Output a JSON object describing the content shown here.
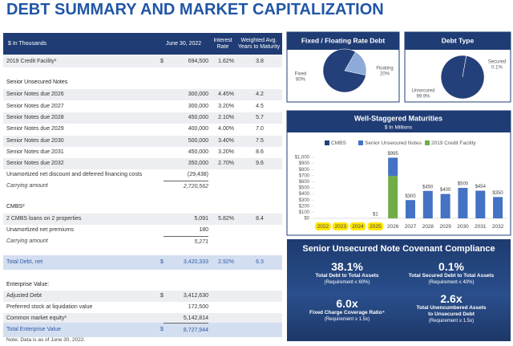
{
  "title": "DEBT SUMMARY AND MARKET CAPITALIZATION",
  "table": {
    "header": [
      "$ In Thousands",
      "June 30, 2022",
      "Interest Rate",
      "Weighted Avg. Years to Maturity"
    ],
    "rows": [
      {
        "label": "2019 Credit Facility¹",
        "currency": "$",
        "amount": "694,500",
        "rate": "1.62%",
        "years": "3.8"
      },
      {
        "label": "Senior Unsecured Notes"
      },
      {
        "label": "Senior Notes due 2026",
        "amount": "300,000",
        "rate": "4.45%",
        "years": "4.2"
      },
      {
        "label": "Senior Notes due 2027",
        "amount": "300,000",
        "rate": "3.20%",
        "years": "4.5"
      },
      {
        "label": "Senior Notes due 2028",
        "amount": "450,000",
        "rate": "2.10%",
        "years": "5.7"
      },
      {
        "label": "Senior Notes due 2029",
        "amount": "400,000",
        "rate": "4.00%",
        "years": "7.0"
      },
      {
        "label": "Senior Notes due 2030",
        "amount": "500,000",
        "rate": "3.40%",
        "years": "7.5"
      },
      {
        "label": "Senior Notes due 2031",
        "amount": "450,000",
        "rate": "3.20%",
        "years": "8.6"
      },
      {
        "label": "Senior Notes due 2032",
        "amount": "350,000",
        "rate": "2.70%",
        "years": "9.6"
      },
      {
        "label": "Unamortized net discount and deferred financing costs",
        "amount": "(29,438)"
      },
      {
        "label": "Carrying amount",
        "amount": "2,720,562"
      },
      {
        "label": "CMBS²"
      },
      {
        "label": "2 CMBS loans on 2 properties",
        "amount": "5,091",
        "rate": "5.82%",
        "years": "8.4"
      },
      {
        "label": "Unamortized net premiums",
        "amount": "180"
      },
      {
        "label": "Carrying amount",
        "amount": "5,271"
      },
      {
        "label": "Total Debt, net",
        "currency": "$",
        "amount": "3,420,333",
        "rate": "2.92%",
        "years": "6.3"
      },
      {
        "label": "Enterprise Value:"
      },
      {
        "label": "Adjusted Debt",
        "currency": "$",
        "amount": "3,412,630"
      },
      {
        "label": "Preferred stock at liquidation value",
        "amount": "172,500"
      },
      {
        "label": "Common market equity³",
        "amount": "5,142,814"
      },
      {
        "label": "Total Enterprise Value",
        "currency": "$",
        "amount": "8,727,944"
      }
    ]
  },
  "note": "Note: Data is as of June 30, 2022.",
  "chart_data": [
    {
      "type": "pie",
      "title": "Fixed / Floating Rate Debt",
      "categories": [
        "Fixed",
        "Floating"
      ],
      "values": [
        80,
        20
      ],
      "value_labels": [
        "80%",
        "20%"
      ],
      "colors": [
        "#24407a",
        "#8eaad8"
      ]
    },
    {
      "type": "pie",
      "title": "Debt Type",
      "categories": [
        "Secured",
        "Unsecured"
      ],
      "values": [
        0.1,
        99.9
      ],
      "value_labels": [
        "0.1%",
        "99.9%"
      ],
      "colors": [
        "#8eaad8",
        "#24407a"
      ]
    },
    {
      "type": "bar",
      "stacked": true,
      "title": "Well-Staggered Maturities",
      "subtitle": "$ In Millions",
      "categories": [
        "2022",
        "2023",
        "2024",
        "2025",
        "2026",
        "2027",
        "2028",
        "2029",
        "2030",
        "2031",
        "2032"
      ],
      "series": [
        {
          "name": "CMBS",
          "color": "#24407a",
          "values": [
            0,
            0,
            0,
            1,
            0,
            0,
            0,
            0,
            0,
            4,
            0
          ]
        },
        {
          "name": "Senior Unsecured Notes",
          "color": "#4472c4",
          "values": [
            0,
            0,
            0,
            0,
            300,
            300,
            450,
            400,
            500,
            450,
            350
          ]
        },
        {
          "name": "2019 Credit Facility",
          "color": "#70ad47",
          "values": [
            0,
            0,
            0,
            0,
            694.5,
            0,
            0,
            0,
            0,
            0,
            0
          ]
        }
      ],
      "total_labels": [
        null,
        null,
        null,
        "$1",
        "$995",
        "$300",
        "$450",
        "$400",
        "$500",
        "$454",
        "$350"
      ],
      "ylim": [
        0,
        1000
      ],
      "yticks": [
        {
          "value": 0,
          "label": "$0"
        },
        {
          "value": 100,
          "label": "$100"
        },
        {
          "value": 200,
          "label": "$200"
        },
        {
          "value": 300,
          "label": "$300"
        },
        {
          "value": 400,
          "label": "$400"
        },
        {
          "value": 500,
          "label": "$500"
        },
        {
          "value": 600,
          "label": "$600"
        },
        {
          "value": 700,
          "label": "$700"
        },
        {
          "value": 800,
          "label": "$800"
        },
        {
          "value": 900,
          "label": "$900"
        },
        {
          "value": 1000,
          "label": "$1,000"
        }
      ]
    }
  ],
  "covenants": {
    "title": "Senior Unsecured Note Covenant Compliance",
    "items": [
      {
        "value": "38.1%",
        "label": "Total Debt to Total Assets",
        "requirement": "(Requirement ≤ 60%)"
      },
      {
        "value": "0.1%",
        "label": "Total Secured Debt to Total Assets",
        "requirement": "(Requirement ≤ 40%)"
      },
      {
        "value": "6.0x",
        "label": "Fixed Charge Coverage Ratio⁴",
        "requirement": "(Requirement ≥ 1.5x)"
      },
      {
        "value": "2.6x",
        "label": "Total Unencumbered Assets to Unsecured Debt",
        "requirement": "(Requirement ≥ 1.5x)"
      }
    ]
  }
}
